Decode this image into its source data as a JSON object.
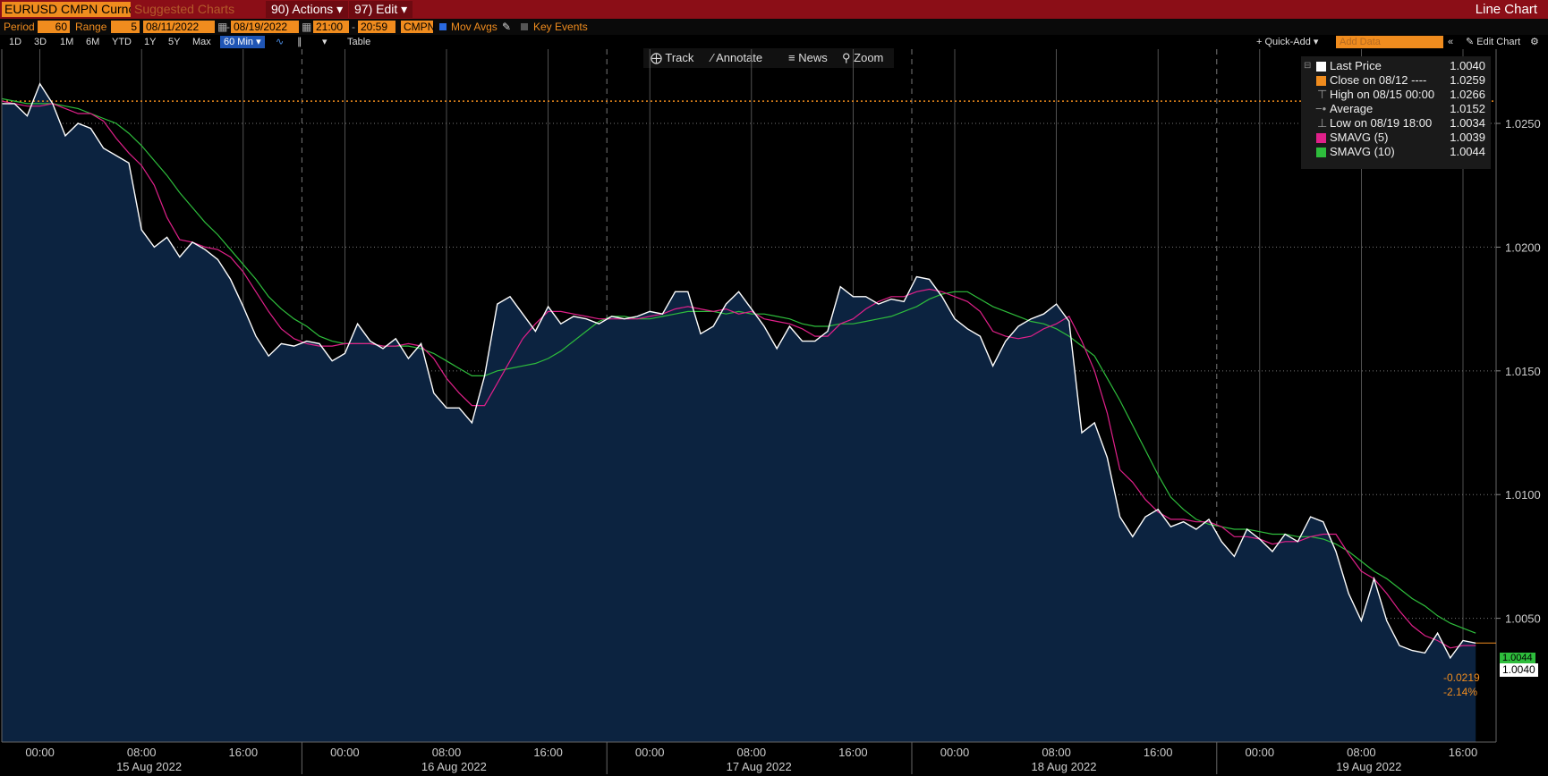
{
  "toolbar": {
    "security": "EURUSD CMPN Curncy",
    "suggested": "Suggested Charts",
    "actions_label": "90) Actions",
    "edit_label": "97) Edit",
    "chart_type": "Line Chart"
  },
  "settings": {
    "period_label": "Period",
    "period_value": "60",
    "range_label": "Range",
    "range_count": "5",
    "start_date": "08/11/2022",
    "end_date": "08/19/2022",
    "start_time": "21:00",
    "end_time": "20:59",
    "source": "CMPN",
    "mov_avgs_label": "Mov Avgs",
    "key_events_label": "Key Events"
  },
  "range_buttons": [
    "1D",
    "3D",
    "1M",
    "6M",
    "YTD",
    "1Y",
    "5Y",
    "Max"
  ],
  "interval_selected": "60 Min",
  "table_label": "Table",
  "quick_add_label": "+ Quick-Add",
  "add_data_placeholder": "Add Data",
  "edit_chart_label": "Edit Chart",
  "chart_tools": [
    "Track",
    "Annotate",
    "News",
    "Zoom"
  ],
  "legend": [
    {
      "name": "Last Price",
      "value": "1.0040",
      "color": "#ffffff"
    },
    {
      "name": "Close on 08/12 ----",
      "value": "1.0259",
      "color": "#f08c1e"
    },
    {
      "name": "High on 08/15 00:00",
      "value": "1.0266",
      "color": "#888888"
    },
    {
      "name": "Average",
      "value": "1.0152",
      "color": "#888888"
    },
    {
      "name": "Low on 08/19 18:00",
      "value": "1.0034",
      "color": "#888888"
    },
    {
      "name": "SMAVG (5)",
      "value": "1.0039",
      "color": "#e0208a"
    },
    {
      "name": "SMAVG (10)",
      "value": "1.0044",
      "color": "#2ebd3c"
    }
  ],
  "axis_tags": {
    "last": "1.0040",
    "smavg10": "1.0044",
    "change": "-0.0219",
    "change_pct": "-2.14%"
  },
  "chart_data": {
    "type": "line",
    "ylim": [
      1.0,
      1.028
    ],
    "y_ticks": [
      "1.0250",
      "1.0200",
      "1.0150",
      "1.0100",
      "1.0050"
    ],
    "x_time_labels": [
      "00:00",
      "08:00",
      "16:00",
      "00:00",
      "08:00",
      "16:00",
      "00:00",
      "08:00",
      "16:00",
      "00:00",
      "08:00",
      "16:00",
      "00:00",
      "08:00",
      "16:00"
    ],
    "x_date_labels": [
      "15 Aug 2022",
      "16 Aug 2022",
      "17 Aug 2022",
      "18 Aug 2022",
      "19 Aug 2022"
    ],
    "reference_close": 1.0259,
    "colors": {
      "last": "#ffffff",
      "smavg5": "#e0208a",
      "smavg10": "#2ebd3c",
      "area": "#0c2340",
      "close_line": "#f08c1e"
    },
    "series": [
      {
        "name": "Last Price",
        "values": [
          1.0258,
          1.0258,
          1.0253,
          1.0266,
          1.0258,
          1.0245,
          1.025,
          1.0248,
          1.024,
          1.0237,
          1.0234,
          1.0207,
          1.02,
          1.0204,
          1.0196,
          1.0202,
          1.0199,
          1.0195,
          1.0187,
          1.0176,
          1.0164,
          1.0156,
          1.0161,
          1.016,
          1.0162,
          1.0161,
          1.0154,
          1.0157,
          1.0169,
          1.0162,
          1.0159,
          1.0163,
          1.0155,
          1.0161,
          1.0141,
          1.0135,
          1.0135,
          1.0129,
          1.0148,
          1.0177,
          1.018,
          1.0173,
          1.0166,
          1.0176,
          1.0169,
          1.0172,
          1.0171,
          1.0169,
          1.0172,
          1.0171,
          1.0172,
          1.0174,
          1.0173,
          1.0182,
          1.0182,
          1.0165,
          1.0168,
          1.0177,
          1.0182,
          1.0175,
          1.0168,
          1.0159,
          1.0168,
          1.0162,
          1.0162,
          1.0166,
          1.0184,
          1.018,
          1.018,
          1.0177,
          1.0179,
          1.0178,
          1.0188,
          1.0187,
          1.018,
          1.0171,
          1.0167,
          1.0164,
          1.0152,
          1.0162,
          1.0168,
          1.0171,
          1.0173,
          1.0177,
          1.017,
          1.0125,
          1.0129,
          1.0115,
          1.0091,
          1.0083,
          1.0091,
          1.0094,
          1.0087,
          1.0089,
          1.0086,
          1.009,
          1.0081,
          1.0075,
          1.0086,
          1.0082,
          1.0077,
          1.0084,
          1.0081,
          1.0091,
          1.0089,
          1.0077,
          1.006,
          1.0049,
          1.0066,
          1.0049,
          1.0039,
          1.0037,
          1.0036,
          1.0044,
          1.0034,
          1.0041,
          1.004
        ]
      },
      {
        "name": "SMAVG (5)",
        "values": [
          1.0259,
          1.0258,
          1.0257,
          1.0257,
          1.0258,
          1.0256,
          1.0254,
          1.0254,
          1.0251,
          1.0244,
          1.0238,
          1.0233,
          1.0225,
          1.0212,
          1.0203,
          1.0202,
          1.02,
          1.0199,
          1.0196,
          1.019,
          1.0182,
          1.0174,
          1.0167,
          1.0163,
          1.0161,
          1.016,
          1.016,
          1.0161,
          1.0161,
          1.0161,
          1.016,
          1.016,
          1.0161,
          1.016,
          1.0155,
          1.0147,
          1.0141,
          1.0136,
          1.0136,
          1.0145,
          1.0154,
          1.0163,
          1.0169,
          1.0174,
          1.0174,
          1.0173,
          1.0172,
          1.0171,
          1.0171,
          1.0171,
          1.0171,
          1.0172,
          1.0173,
          1.0175,
          1.0176,
          1.0175,
          1.0174,
          1.0175,
          1.0173,
          1.0174,
          1.0171,
          1.017,
          1.0169,
          1.0167,
          1.0164,
          1.0164,
          1.0169,
          1.0171,
          1.0175,
          1.0178,
          1.018,
          1.018,
          1.0182,
          1.0183,
          1.0182,
          1.018,
          1.0178,
          1.0174,
          1.0166,
          1.0164,
          1.0163,
          1.0164,
          1.0167,
          1.0169,
          1.0172,
          1.0162,
          1.015,
          1.0133,
          1.011,
          1.0105,
          1.0098,
          1.0093,
          1.009,
          1.009,
          1.0089,
          1.0089,
          1.0087,
          1.0083,
          1.0083,
          1.0082,
          1.008,
          1.0081,
          1.0081,
          1.0083,
          1.0084,
          1.0084,
          1.0076,
          1.0069,
          1.0066,
          1.006,
          1.0053,
          1.0047,
          1.0043,
          1.0041,
          1.0038,
          1.0039,
          1.0039
        ]
      },
      {
        "name": "SMAVG (10)",
        "values": [
          1.026,
          1.0259,
          1.0258,
          1.0258,
          1.0258,
          1.0257,
          1.0256,
          1.0254,
          1.0252,
          1.025,
          1.0246,
          1.0241,
          1.0235,
          1.0229,
          1.0222,
          1.0216,
          1.021,
          1.0205,
          1.0199,
          1.0193,
          1.0187,
          1.018,
          1.0175,
          1.0171,
          1.0168,
          1.0164,
          1.0162,
          1.0161,
          1.0161,
          1.0161,
          1.016,
          1.016,
          1.016,
          1.0159,
          1.0157,
          1.0154,
          1.0151,
          1.0148,
          1.0148,
          1.015,
          1.0151,
          1.0152,
          1.0153,
          1.0155,
          1.0158,
          1.0162,
          1.0166,
          1.017,
          1.0172,
          1.0172,
          1.0171,
          1.0171,
          1.0172,
          1.0173,
          1.0174,
          1.0174,
          1.0174,
          1.0173,
          1.0174,
          1.0173,
          1.0173,
          1.0172,
          1.0171,
          1.0169,
          1.0168,
          1.0168,
          1.0169,
          1.0169,
          1.017,
          1.0171,
          1.0172,
          1.0174,
          1.0176,
          1.0179,
          1.0181,
          1.0182,
          1.0182,
          1.0179,
          1.0176,
          1.0174,
          1.0172,
          1.017,
          1.0169,
          1.0167,
          1.0164,
          1.016,
          1.0156,
          1.0147,
          1.0138,
          1.0128,
          1.0118,
          1.0108,
          1.0099,
          1.0094,
          1.009,
          1.0088,
          1.0087,
          1.0086,
          1.0086,
          1.0085,
          1.0084,
          1.0084,
          1.0083,
          1.0083,
          1.0082,
          1.008,
          1.0077,
          1.0073,
          1.0069,
          1.0066,
          1.0062,
          1.0058,
          1.0055,
          1.0051,
          1.0048,
          1.0046,
          1.0044
        ]
      }
    ]
  }
}
